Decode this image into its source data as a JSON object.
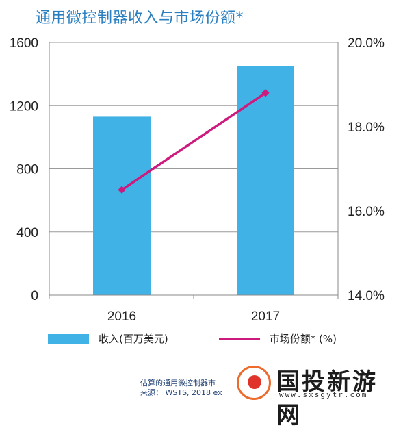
{
  "title": "通用微控制器收入与市场份额*",
  "chart_data": {
    "type": "bar",
    "categories": [
      "2016",
      "2017"
    ],
    "series": [
      {
        "name": "收入(百万美元)",
        "type": "bar",
        "axis": "left",
        "values": [
          1130,
          1450
        ],
        "color": "#40b2e6"
      },
      {
        "name": "市场份额* (%)",
        "type": "line",
        "axis": "right",
        "values": [
          16.5,
          18.8
        ],
        "color": "#cc1a7d"
      }
    ],
    "left_axis": {
      "ylim": [
        0,
        1600
      ],
      "ticks": [
        "0",
        "400",
        "800",
        "1200",
        "1600"
      ],
      "tick_values": [
        0,
        400,
        800,
        1200,
        1600
      ]
    },
    "right_axis": {
      "ylim": [
        14.0,
        20.0
      ],
      "ticks": [
        "14.0%",
        "16.0%",
        "18.0%",
        "20.0%"
      ],
      "tick_values": [
        14,
        16,
        18,
        20
      ]
    },
    "grid": true,
    "legend": "bottom"
  },
  "legend": {
    "bar_label": "收入(百万美元)",
    "line_label": "市场份额* (%)"
  },
  "footnote": {
    "line1": "估算的通用微控制器市",
    "line2": "来源： WSTS, 2018 ex"
  },
  "watermark": {
    "name": "国投新游网",
    "url": "www.sxsgytr.com"
  }
}
